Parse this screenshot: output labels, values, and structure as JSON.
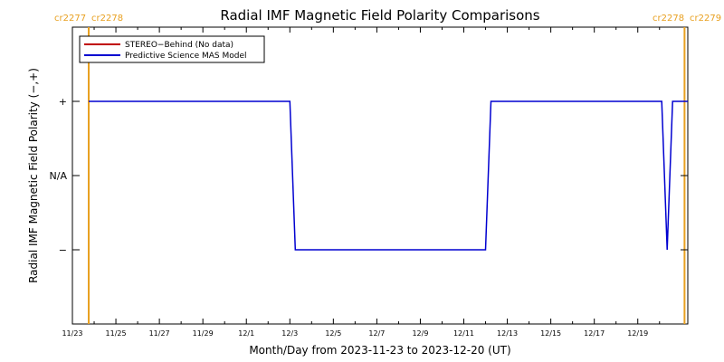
{
  "chart_data": {
    "type": "line",
    "title": "Radial IMF Magnetic Field Polarity Comparisons",
    "xlabel": "Month/Day from 2023-11-23 to 2023-12-20 (UT)",
    "ylabel": "Radial IMF Magnetic Field Polarity (−,+)",
    "x_tick_labels": [
      "11/23",
      "11/25",
      "11/27",
      "11/29",
      "12/1",
      "12/3",
      "12/5",
      "12/7",
      "12/9",
      "12/11",
      "12/13",
      "12/15",
      "12/17",
      "12/19"
    ],
    "x_tick_days": [
      0,
      2,
      4,
      6,
      8,
      10,
      12,
      14,
      16,
      18,
      20,
      22,
      24,
      26
    ],
    "x_range_days": [
      0,
      28.3
    ],
    "y_tick_labels": [
      "+",
      "N/A",
      "−"
    ],
    "y_tick_values": [
      1,
      0,
      -1
    ],
    "ylim": [
      -2,
      2
    ],
    "carrington_markers": [
      {
        "left_label": "cr2277",
        "right_label": "cr2278",
        "day": 0.75,
        "color": "#e8a020"
      },
      {
        "left_label": "cr2278",
        "right_label": "cr2279",
        "day": 28.15,
        "color": "#e8a020"
      }
    ],
    "legend_position": "top-left",
    "series": [
      {
        "name": "STEREO−Behind (No data)",
        "color": "#c00000",
        "x_days": [],
        "y": []
      },
      {
        "name": "Predictive Science MAS Model",
        "color": "#0000d0",
        "x_days": [
          0.75,
          10.0,
          10.25,
          19.0,
          19.25,
          27.1,
          27.35,
          27.6,
          28.3
        ],
        "y": [
          1,
          1,
          -1,
          -1,
          1,
          1,
          -1,
          1,
          1
        ]
      }
    ]
  }
}
